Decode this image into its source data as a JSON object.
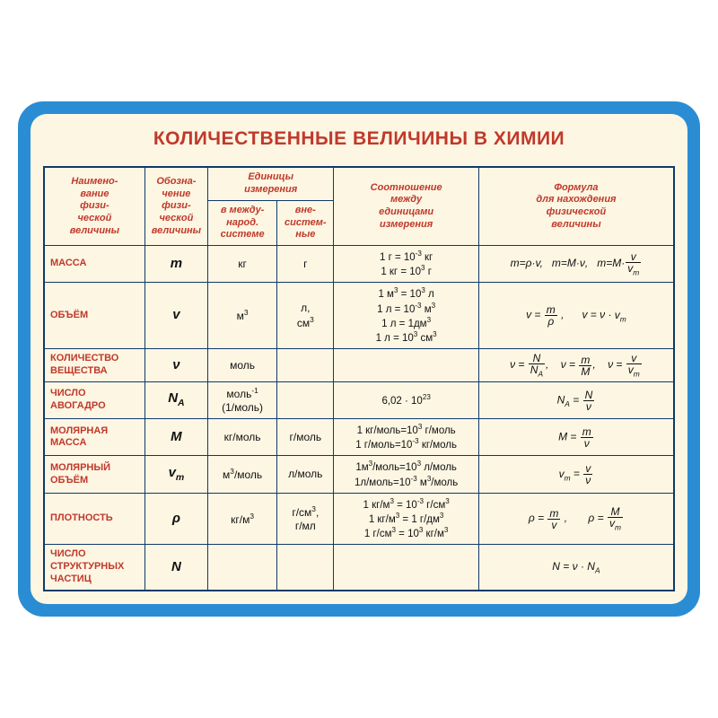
{
  "colors": {
    "frame": "#2a8dd4",
    "paper": "#fdf6e3",
    "border": "#0e3a6b",
    "accent": "#c0392b",
    "text": "#111111"
  },
  "title": "КОЛИЧЕСТВЕННЫЕ ВЕЛИЧИНЫ В ХИМИИ",
  "headers": {
    "name": "Наимено-\nвание\nфизи-\nческой\nвеличины",
    "symbol": "Обозна-\nчение\nфизи-\nческой\nвеличины",
    "units_group": "Единицы\nизмерения",
    "units_si": "в между-\nнарод.\nсистеме",
    "units_nonsi": "вне-\nсистем-\nные",
    "relation": "Соотношение\nмежду\nединицами\nизмерения",
    "formula": "Формула\nдля нахождения\nфизической\nвеличины"
  },
  "column_widths_pct": [
    16,
    10,
    11,
    9,
    23,
    31
  ],
  "rows": [
    {
      "name": "МАССА",
      "symbol_html": "<i>m</i>",
      "unit_si_html": "кг",
      "unit_nonsi_html": "г",
      "relation_html": "1 г = 10<sup>-3</sup> кг<br>1 кг = 10<sup>3</sup> г",
      "formula_html": "<i>m</i>=ρ·<i>v</i>,<span class=\"gap\"></span><i>m</i>=<i>M</i>·ν,<span class=\"gap\"></span><i>m</i>=<i>M</i>·<span class=\"frac\"><span class=\"num\"><i>v</i></span><span class=\"den\"><i>v<sub>m</sub></i></span></span>"
    },
    {
      "name": "ОБЪЁМ",
      "symbol_html": "<i>v</i>",
      "unit_si_html": "м<sup>3</sup>",
      "unit_nonsi_html": "л,<br>см<sup>3</sup>",
      "relation_html": "1 м<sup>3</sup> = 10<sup>3</sup> л<br>1 л = 10<sup>-3</sup> м<sup>3</sup><br>1 л = 1дм<sup>3</sup><br>1 л = 10<sup>3</sup> см<sup>3</sup>",
      "formula_html": "<i>v</i> = <span class=\"frac\"><span class=\"num\"><i>m</i></span><span class=\"den\">ρ</span></span> ,<span class=\"gap\"></span><span class=\"gap\"></span><i>v</i> = ν · <i>v<sub>m</sub></i>"
    },
    {
      "name": "КОЛИЧЕСТВО ВЕЩЕСТВА",
      "symbol_html": "ν",
      "unit_si_html": "моль",
      "unit_nonsi_html": "",
      "relation_html": "",
      "formula_html": "ν = <span class=\"frac\"><span class=\"num\"><i>N</i></span><span class=\"den\"><i>N</i><sub>A</sub></span></span>,<span class=\"gap\"></span> ν = <span class=\"frac\"><span class=\"num\"><i>m</i></span><span class=\"den\"><i>M</i></span></span>,<span class=\"gap\"></span> ν = <span class=\"frac\"><span class=\"num\"><i>v</i></span><span class=\"den\"><i>v<sub>m</sub></i></span></span>"
    },
    {
      "name": "ЧИСЛО АВОГАДРО",
      "symbol_html": "<i>N</i><sub>A</sub>",
      "unit_si_html": "моль<sup>-1</sup><br>(1/моль)",
      "unit_nonsi_html": "",
      "relation_html": "6,02 · 10<sup>23</sup>",
      "formula_html": "<i>N</i><sub>A</sub> = <span class=\"frac\"><span class=\"num\"><i>N</i></span><span class=\"den\">ν</span></span>"
    },
    {
      "name": "МОЛЯРНАЯ МАССА",
      "symbol_html": "<i>M</i>",
      "unit_si_html": "кг/моль",
      "unit_nonsi_html": "г/моль",
      "relation_html": "1 кг/моль=10<sup>3</sup> г/моль<br>1 г/моль=10<sup>-3</sup> кг/моль",
      "formula_html": "<i>M</i> = <span class=\"frac\"><span class=\"num\"><i>m</i></span><span class=\"den\">ν</span></span>"
    },
    {
      "name": "МОЛЯРНЫЙ ОБЪЁМ",
      "symbol_html": "<i>v<sub>m</sub></i>",
      "unit_si_html": "м<sup>3</sup>/моль",
      "unit_nonsi_html": "л/моль",
      "relation_html": "1м<sup>3</sup>/моль=10<sup>3</sup> л/моль<br>1л/моль=10<sup>-3</sup> м<sup>3</sup>/моль",
      "formula_html": "<i>v<sub>m</sub></i> = <span class=\"frac\"><span class=\"num\"><i>v</i></span><span class=\"den\">ν</span></span>"
    },
    {
      "name": "ПЛОТНОСТЬ",
      "symbol_html": "ρ",
      "unit_si_html": "кг/м<sup>3</sup>",
      "unit_nonsi_html": "г/см<sup>3</sup>,<br>г/мл",
      "relation_html": "1 кг/м<sup>3</sup> = 10<sup>-3</sup> г/см<sup>3</sup><br>1 кг/м<sup>3</sup> = 1 г/дм<sup>3</sup><br>1 г/см<sup>3</sup> = 10<sup>3</sup> кг/м<sup>3</sup>",
      "formula_html": "ρ = <span class=\"frac\"><span class=\"num\"><i>m</i></span><span class=\"den\"><i>v</i></span></span> ,<span class=\"gap\"></span><span class=\"gap\"></span> ρ = <span class=\"frac\"><span class=\"num\"><i>M</i></span><span class=\"den\"><i>v<sub>m</sub></i></span></span>"
    },
    {
      "name": "ЧИСЛО СТРУКТУРНЫХ ЧАСТИЦ",
      "symbol_html": "<i>N</i>",
      "unit_si_html": "",
      "unit_nonsi_html": "",
      "relation_html": "",
      "formula_html": "<i>N</i> = ν · <i>N</i><sub>A</sub>"
    }
  ]
}
